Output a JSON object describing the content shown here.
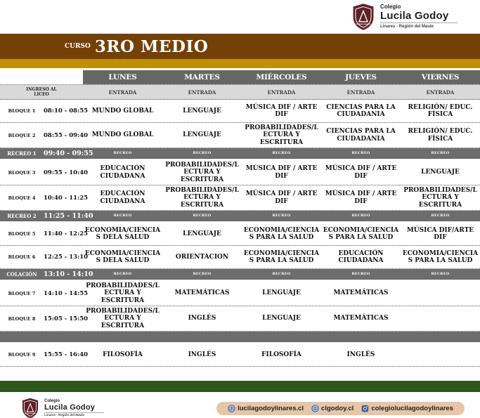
{
  "brand": {
    "colegio": "Colegio",
    "name": "Lucila Godoy",
    "region": "Linares - Región del Maule"
  },
  "banner": {
    "curso_label": "CURSO",
    "curso_value": "3RO MEDIO"
  },
  "table": {
    "days": [
      "LUNES",
      "MARTES",
      "MIÉRCOLES",
      "JUEVES",
      "VIERNES"
    ],
    "rows": [
      {
        "type": "entrada",
        "label": "INGRESO AL LICEO",
        "time": "",
        "cells": [
          "ENTRADA",
          "ENTRADA",
          "ENTRADA",
          "ENTRADA",
          "ENTRADA"
        ]
      },
      {
        "type": "class",
        "label": "BLOQUE 1",
        "time": "08:10 - 08:55",
        "cells": [
          "MUNDO GLOBAL",
          "LENGUAJE",
          "MÚSICA DIF / ARTE DIF",
          "CIENCIAS PARA LA CIUDADANIA",
          "RELIGIÓN/ EDUC. FÍSICA"
        ]
      },
      {
        "type": "class",
        "label": "BLOQUE 2",
        "time": "08:55 - 09:40",
        "cells": [
          "MUNDO GLOBAL",
          "LENGUAJE",
          "PROBABILIDADES/LECTURA Y ESCRITURA",
          "CIENCIAS PARA LA CIUDADANIA",
          "RELIGIÓN/ EDUC. FÍSICA"
        ]
      },
      {
        "type": "break",
        "label": "RECREO 1",
        "time": "09:40 - 09:55",
        "cells": [
          "RECREO",
          "RECREO",
          "RECREO",
          "RECREO",
          "RECREO"
        ]
      },
      {
        "type": "class",
        "label": "BLOQUE 3",
        "time": "09:55 - 10:40",
        "cells": [
          "EDUCACIÓN CIUDADANA",
          "PROBABILIDADES/LECTURA Y ESCRITURA",
          "MÚSICA DIF / ARTE DIF",
          "MÚSICA DIF / ARTE DIF",
          "LENGUAJE"
        ]
      },
      {
        "type": "class",
        "label": "BLOQUE 4",
        "time": "10:40 - 11:25",
        "cells": [
          "EDUCACIÓN CIUDADANA",
          "PROBABILIDADES/LECTURA Y ESCRITURA",
          "MÚSICA DIF / ARTE DIF",
          "MÚSICA DIF / ARTE DIF",
          "PROBABILIDADES/LECTURA Y ESCRITURA"
        ]
      },
      {
        "type": "break",
        "label": "RECREO 2",
        "time": "11:25 - 11:40",
        "cells": [
          "RECREO",
          "RECREO",
          "RECREO",
          "RECREO",
          "RECREO"
        ]
      },
      {
        "type": "class",
        "label": "BLOQUE 5",
        "time": "11:40 - 12:25",
        "cells": [
          "ECONOMIA/CIENCIAS DELA SALUD",
          "LENGUAJE",
          "ECONOMIA/CIENCIAS PARA LA SALUD",
          "ECONOMIA/CIENCIAS PARA LA SALUD",
          "MÚSICA DIF/ARTE DIF"
        ]
      },
      {
        "type": "class",
        "label": "BLOQUE 6",
        "time": "12:25 - 13:10",
        "cells": [
          "ECONOMIA/CIENCIAS DELA SALUD",
          "ORIENTACION",
          "ECONOMIA/CIENCIAS PARA LA SALUD",
          "EDUCACIÓN CIUDADANA",
          "ECONOMIA/CIENCIAS PARA LA SALUD"
        ]
      },
      {
        "type": "break",
        "label": "COLACIÓN",
        "time": "13:10 - 14:10",
        "cells": [
          "RECREO",
          "RECREO",
          "RECREO",
          "RECREO",
          "RECREO"
        ]
      },
      {
        "type": "class",
        "label": "BLOQUE 7",
        "time": "14:10 - 14:55",
        "cells": [
          "PROBABILIDADES/LECTURA Y ESCRITURA",
          "MATEMÁTICAS",
          "LENGUAJE",
          "MATEMÁTICAS",
          ""
        ]
      },
      {
        "type": "class",
        "label": "BLOQUE 8",
        "time": "15:05 - 15:50",
        "cells": [
          "PROBABILIDADES/LECTURA Y ESCRITURA",
          "INGLÉS",
          "LENGUAJE",
          "MATEMÁTICAS",
          ""
        ]
      },
      {
        "type": "break",
        "label": "",
        "time": "",
        "cells": [
          "",
          "",
          "",
          "",
          ""
        ]
      },
      {
        "type": "class",
        "label": "BLOQUE 9",
        "time": "15:55 - 16:40",
        "cells": [
          "FILOSOFÍA",
          "INGLÉS",
          "FILOSOFÍA",
          "INGLÉS",
          ""
        ]
      }
    ]
  },
  "footer": {
    "links": [
      {
        "icon": "globe-icon",
        "text": "lucilagodoylinares.cl"
      },
      {
        "icon": "globe-icon",
        "text": "clgodoy.cl"
      },
      {
        "icon": "instagram-icon",
        "text": "colegiolucilagodoylinares"
      }
    ]
  },
  "colors": {
    "banner_brown": "#734005",
    "banner_gold": "#bf9102",
    "day_header_gray": "#666666",
    "entrada_gray": "#d9d9d9",
    "break_gray": "#6d6d6d",
    "footer_green": "#2e571e",
    "pill_tan": "#e6c6a6",
    "crest_maroon": "#5e2129",
    "link_blue": "#2d5d9e"
  }
}
